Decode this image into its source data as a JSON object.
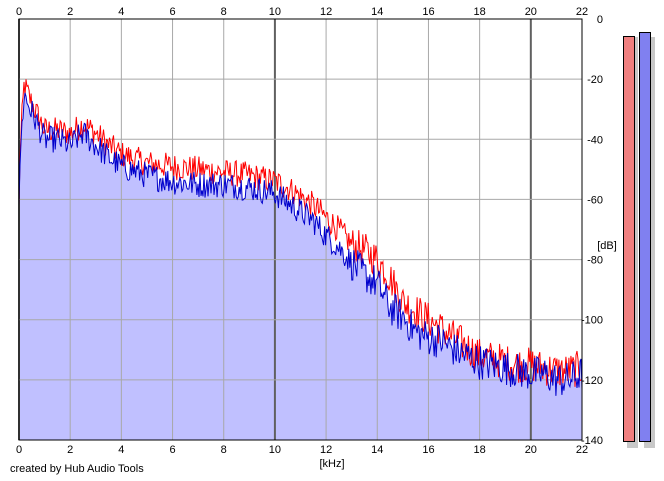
{
  "chart_data": {
    "type": "area",
    "title": "",
    "xlabel": "[kHz]",
    "ylabel": "[dB]",
    "xlim": [
      0,
      22
    ],
    "ylim": [
      -140,
      0
    ],
    "x_ticks": [
      0,
      2,
      4,
      6,
      8,
      10,
      12,
      14,
      16,
      18,
      20,
      22
    ],
    "y_ticks": [
      0,
      -20,
      -40,
      -60,
      -80,
      -100,
      -120,
      -140
    ],
    "y_tick_labels": [
      "0",
      "-20",
      "-40",
      "-60",
      "-80",
      "-100",
      "-120",
      "-140"
    ],
    "grid": true,
    "x_axis_position": "top and bottom",
    "y_axis_position": "right",
    "series": [
      {
        "color": "#ff0000",
        "x": [
          0,
          0.05,
          0.2,
          0.5,
          1,
          1.5,
          2,
          2.5,
          3,
          3.5,
          4,
          5,
          6,
          7,
          8,
          9,
          10,
          10.5,
          11,
          11.5,
          12,
          12.5,
          13,
          13.5,
          14,
          14.5,
          15,
          15.5,
          16,
          16.5,
          17,
          17.5,
          18,
          18.5,
          19,
          19.5,
          20,
          20.5,
          21,
          21.5,
          22
        ],
        "values": [
          -62,
          -42,
          -22,
          -28,
          -37,
          -37,
          -38,
          -35,
          -38,
          -42,
          -45,
          -48,
          -49,
          -50,
          -51,
          -52,
          -54,
          -56,
          -59,
          -62,
          -66,
          -70,
          -75,
          -77,
          -80,
          -86,
          -94,
          -97,
          -100,
          -103,
          -106,
          -109,
          -112,
          -113,
          -114,
          -115,
          -115,
          -116,
          -117,
          -117,
          -116
        ]
      },
      {
        "color": "#0000cc",
        "x": [
          0,
          0.05,
          0.2,
          0.5,
          1,
          1.5,
          2,
          2.5,
          3,
          3.5,
          4,
          5,
          6,
          7,
          8,
          9,
          10,
          10.5,
          11,
          11.5,
          12,
          12.5,
          13,
          13.5,
          14,
          14.5,
          15,
          15.5,
          16,
          16.5,
          17,
          17.5,
          18,
          18.5,
          19,
          19.5,
          20,
          20.5,
          21,
          21.5,
          22
        ],
        "values": [
          -62,
          -45,
          -25,
          -31,
          -40,
          -40,
          -42,
          -38,
          -42,
          -46,
          -49,
          -52,
          -54,
          -55,
          -55,
          -56,
          -58,
          -61,
          -64,
          -67,
          -72,
          -76,
          -81,
          -85,
          -88,
          -96,
          -99,
          -104,
          -106,
          -107,
          -110,
          -112,
          -114,
          -115,
          -116,
          -117,
          -118,
          -118,
          -120,
          -120,
          -118
        ]
      }
    ],
    "fill_color": "#c0c0ff",
    "level_meters": [
      {
        "color": "#f08080",
        "level": 0.97
      },
      {
        "color": "#8080f0",
        "level": 0.98
      }
    ]
  },
  "credit": "created by Hub Audio Tools"
}
